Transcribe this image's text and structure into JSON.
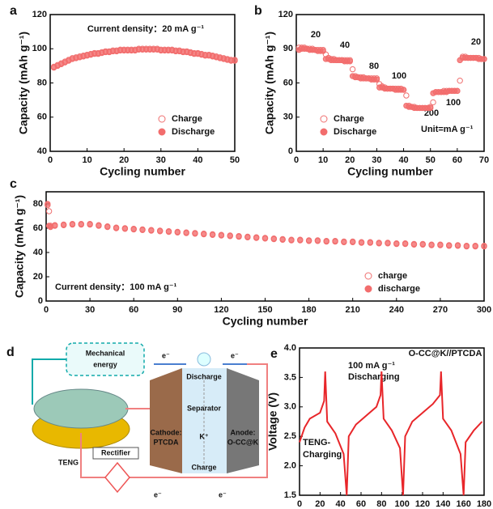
{
  "chart_data": [
    {
      "type": "scatter",
      "label": "a",
      "xlabel": "Cycling number",
      "ylabel": "Capacity (mAh g⁻¹)",
      "xlim": [
        0,
        50
      ],
      "xticks": [
        0,
        10,
        20,
        30,
        40,
        50
      ],
      "ylim": [
        40,
        120
      ],
      "yticks": [
        40,
        60,
        80,
        100,
        120
      ],
      "legend": "lower right",
      "annotations": [
        "Current density：20 mA g⁻¹"
      ],
      "x": [
        1,
        2,
        3,
        4,
        5,
        6,
        7,
        8,
        9,
        10,
        11,
        12,
        13,
        14,
        15,
        16,
        17,
        18,
        19,
        20,
        21,
        22,
        23,
        24,
        25,
        26,
        27,
        28,
        29,
        30,
        31,
        32,
        33,
        34,
        35,
        36,
        37,
        38,
        39,
        40,
        41,
        42,
        43,
        44,
        45,
        46,
        47,
        48,
        49,
        50
      ],
      "series": [
        {
          "name": "Charge",
          "color": "#ef6f6f",
          "hollow": true,
          "values": [
            89.5,
            90.5,
            91.5,
            92.5,
            93.5,
            94.5,
            95,
            95.5,
            96,
            96.5,
            97,
            97.5,
            97.5,
            98,
            98.5,
            98.5,
            99,
            99,
            99.5,
            99.5,
            99.5,
            99.5,
            99.5,
            100,
            100,
            100,
            100,
            100,
            100,
            99.5,
            99.5,
            99.5,
            99.5,
            99,
            99,
            98.5,
            98.5,
            98,
            97.5,
            97.5,
            97,
            96.5,
            96.5,
            96,
            95.5,
            95,
            94.5,
            94,
            93.5,
            93.5
          ]
        },
        {
          "name": "Discharge",
          "color": "#f26d6d",
          "hollow": false,
          "values": [
            89,
            90,
            91,
            92,
            93,
            94,
            94.5,
            95,
            95.5,
            96,
            96.5,
            97,
            97,
            97.5,
            98,
            98,
            98.5,
            98.5,
            99,
            99,
            99,
            99,
            99,
            99.5,
            99.5,
            99.5,
            99.5,
            99.5,
            99.5,
            99,
            99,
            99,
            99,
            98.5,
            98.5,
            98,
            98,
            97.5,
            97,
            97,
            96.5,
            96,
            96,
            95.5,
            95,
            94.5,
            94,
            93.5,
            93,
            93
          ]
        }
      ]
    },
    {
      "type": "scatter",
      "label": "b",
      "xlabel": "Cycling number",
      "ylabel": "Capacity (mAh g⁻¹)",
      "xlim": [
        0,
        70
      ],
      "xticks": [
        0,
        10,
        20,
        30,
        40,
        50,
        60,
        70
      ],
      "ylim": [
        0,
        120
      ],
      "yticks": [
        0,
        30,
        60,
        90,
        120
      ],
      "legend": "lower left",
      "annotations": [
        "20",
        "40",
        "80",
        "100",
        "200",
        "100",
        "20",
        "Unit=mA g⁻¹"
      ],
      "x": [
        1,
        2,
        3,
        4,
        5,
        6,
        7,
        8,
        9,
        10,
        11,
        12,
        13,
        14,
        15,
        16,
        17,
        18,
        19,
        20,
        21,
        22,
        23,
        24,
        25,
        26,
        27,
        28,
        29,
        30,
        31,
        32,
        33,
        34,
        35,
        36,
        37,
        38,
        39,
        40,
        41,
        42,
        43,
        44,
        45,
        46,
        47,
        48,
        49,
        50,
        51,
        52,
        53,
        54,
        55,
        56,
        57,
        58,
        59,
        60,
        61,
        62,
        63,
        64,
        65,
        66,
        67,
        68,
        69,
        70
      ],
      "series": [
        {
          "name": "Charge",
          "color": "#ef6f6f",
          "hollow": true,
          "values": [
            91,
            91,
            91,
            90,
            90,
            90,
            89,
            89,
            89,
            89,
            85,
            82,
            81,
            81,
            80,
            80,
            80,
            80,
            80,
            80,
            72,
            66,
            65,
            65,
            65,
            64,
            64,
            64,
            64,
            64,
            59,
            57,
            56,
            55,
            55,
            55,
            55,
            55,
            55,
            54,
            49,
            40,
            39,
            39,
            38,
            38,
            38,
            38,
            38,
            39,
            43,
            52,
            52,
            52,
            53,
            53,
            53,
            53,
            53,
            53,
            62,
            83,
            83,
            82,
            82,
            82,
            82,
            82,
            81,
            81
          ]
        },
        {
          "name": "Discharge",
          "color": "#f26d6d",
          "hollow": false,
          "values": [
            89,
            90,
            90,
            90,
            89,
            89,
            89,
            88,
            88,
            88,
            81,
            81,
            80,
            80,
            80,
            80,
            80,
            79,
            79,
            79,
            66,
            65,
            65,
            64,
            64,
            64,
            64,
            63,
            63,
            63,
            56,
            56,
            55,
            55,
            55,
            55,
            54,
            54,
            54,
            54,
            40,
            39,
            39,
            38,
            38,
            38,
            38,
            38,
            38,
            38,
            51,
            52,
            52,
            52,
            52,
            52,
            53,
            53,
            53,
            53,
            80,
            82,
            82,
            82,
            82,
            82,
            82,
            81,
            81,
            81
          ]
        }
      ]
    },
    {
      "type": "scatter",
      "label": "c",
      "xlabel": "Cycling number",
      "ylabel": "Capacity (mAh g⁻¹)",
      "xlim": [
        0,
        300
      ],
      "xticks": [
        0,
        30,
        60,
        90,
        120,
        150,
        180,
        210,
        240,
        270,
        300
      ],
      "ylim": [
        0,
        90
      ],
      "yticks": [
        0,
        20,
        40,
        60,
        80
      ],
      "legend": "lower right",
      "annotations": [
        "Current density：100 mA g⁻¹"
      ],
      "x": [
        1,
        2,
        3,
        6,
        12,
        18,
        24,
        30,
        36,
        42,
        48,
        54,
        60,
        66,
        72,
        78,
        84,
        90,
        96,
        102,
        108,
        114,
        120,
        126,
        132,
        138,
        144,
        150,
        156,
        162,
        168,
        174,
        180,
        186,
        192,
        198,
        204,
        210,
        216,
        222,
        228,
        234,
        240,
        246,
        252,
        258,
        264,
        270,
        276,
        282,
        288,
        294,
        300
      ],
      "series": [
        {
          "name": "charge",
          "color": "#ef6f6f",
          "hollow": true,
          "values": [
            79,
            74,
            62,
            62.5,
            63,
            63.5,
            63.5,
            63.5,
            62.5,
            61.5,
            60.5,
            60,
            59.5,
            59,
            58.5,
            58,
            57.5,
            57,
            56.5,
            56,
            55.5,
            55,
            54.5,
            54,
            53.5,
            53,
            52.5,
            52,
            51.5,
            51,
            50.5,
            50.5,
            50,
            50,
            49.5,
            49.5,
            49,
            49,
            48.5,
            48.5,
            48,
            48,
            47.5,
            47.5,
            47,
            47,
            46.5,
            46.5,
            46,
            46,
            45.5,
            45.5,
            45.5
          ]
        },
        {
          "name": "discharge",
          "color": "#f26d6d",
          "hollow": false,
          "values": [
            80,
            62,
            61,
            62,
            62.5,
            63,
            63,
            63,
            62,
            61,
            60,
            59.5,
            59,
            58.5,
            58,
            57.5,
            57,
            56.5,
            56,
            55.5,
            55,
            54.5,
            54,
            53.5,
            53,
            52.5,
            52,
            51.5,
            51,
            50.5,
            50,
            50,
            49.5,
            49.5,
            49,
            49,
            48.5,
            48.5,
            48,
            48,
            47.5,
            47.5,
            47,
            47,
            46.5,
            46.5,
            46,
            46,
            45.5,
            45.5,
            45,
            45,
            45
          ]
        }
      ]
    },
    {
      "type": "line",
      "label": "e",
      "xlabel": "Time (min)",
      "ylabel": "Voltage (V)",
      "xlim": [
        0,
        180
      ],
      "xticks": [
        0,
        20,
        40,
        60,
        80,
        100,
        120,
        140,
        160,
        180
      ],
      "ylim": [
        1.5,
        4.0
      ],
      "yticks": [
        1.5,
        {
          "value": 2.0,
          "label": "2.0"
        },
        2.5,
        {
          "value": 3.0,
          "label": "3.0"
        },
        3.5,
        {
          "value": 4.0,
          "label": "4.0"
        }
      ],
      "annotations": [
        "O-CC@K//PTCDA",
        "100 mA g⁻¹",
        "Discharging",
        "TENG-",
        "Charging"
      ],
      "x": [
        0,
        5,
        10,
        20,
        24,
        25,
        27,
        35,
        43,
        46,
        48,
        55,
        65,
        75,
        79,
        80,
        82,
        90,
        98,
        101,
        103,
        110,
        120,
        130,
        137,
        138,
        140,
        148,
        157,
        160,
        162,
        170,
        178
      ],
      "series": [
        {
          "name": "O-CC@K//PTCDA",
          "color": "#e8262a",
          "values": [
            2.4,
            2.65,
            2.8,
            2.9,
            3.1,
            3.6,
            2.75,
            2.55,
            2.2,
            1.5,
            2.5,
            2.7,
            2.85,
            3.0,
            3.2,
            3.6,
            2.8,
            2.6,
            2.3,
            1.5,
            2.5,
            2.75,
            2.9,
            3.05,
            3.2,
            3.6,
            2.8,
            2.6,
            2.2,
            1.5,
            2.4,
            2.6,
            2.75
          ]
        }
      ]
    }
  ],
  "diagram": {
    "label": "d",
    "texts": [
      "Mechanical",
      "energy",
      "TENG",
      "Rectifier",
      "e⁻",
      "e⁻",
      "e⁻",
      "e⁻",
      "Discharge",
      "Separator",
      "K⁺",
      "Cathode:",
      "PTCDA",
      "Anode:",
      "O-CC@K",
      "Charge"
    ]
  }
}
